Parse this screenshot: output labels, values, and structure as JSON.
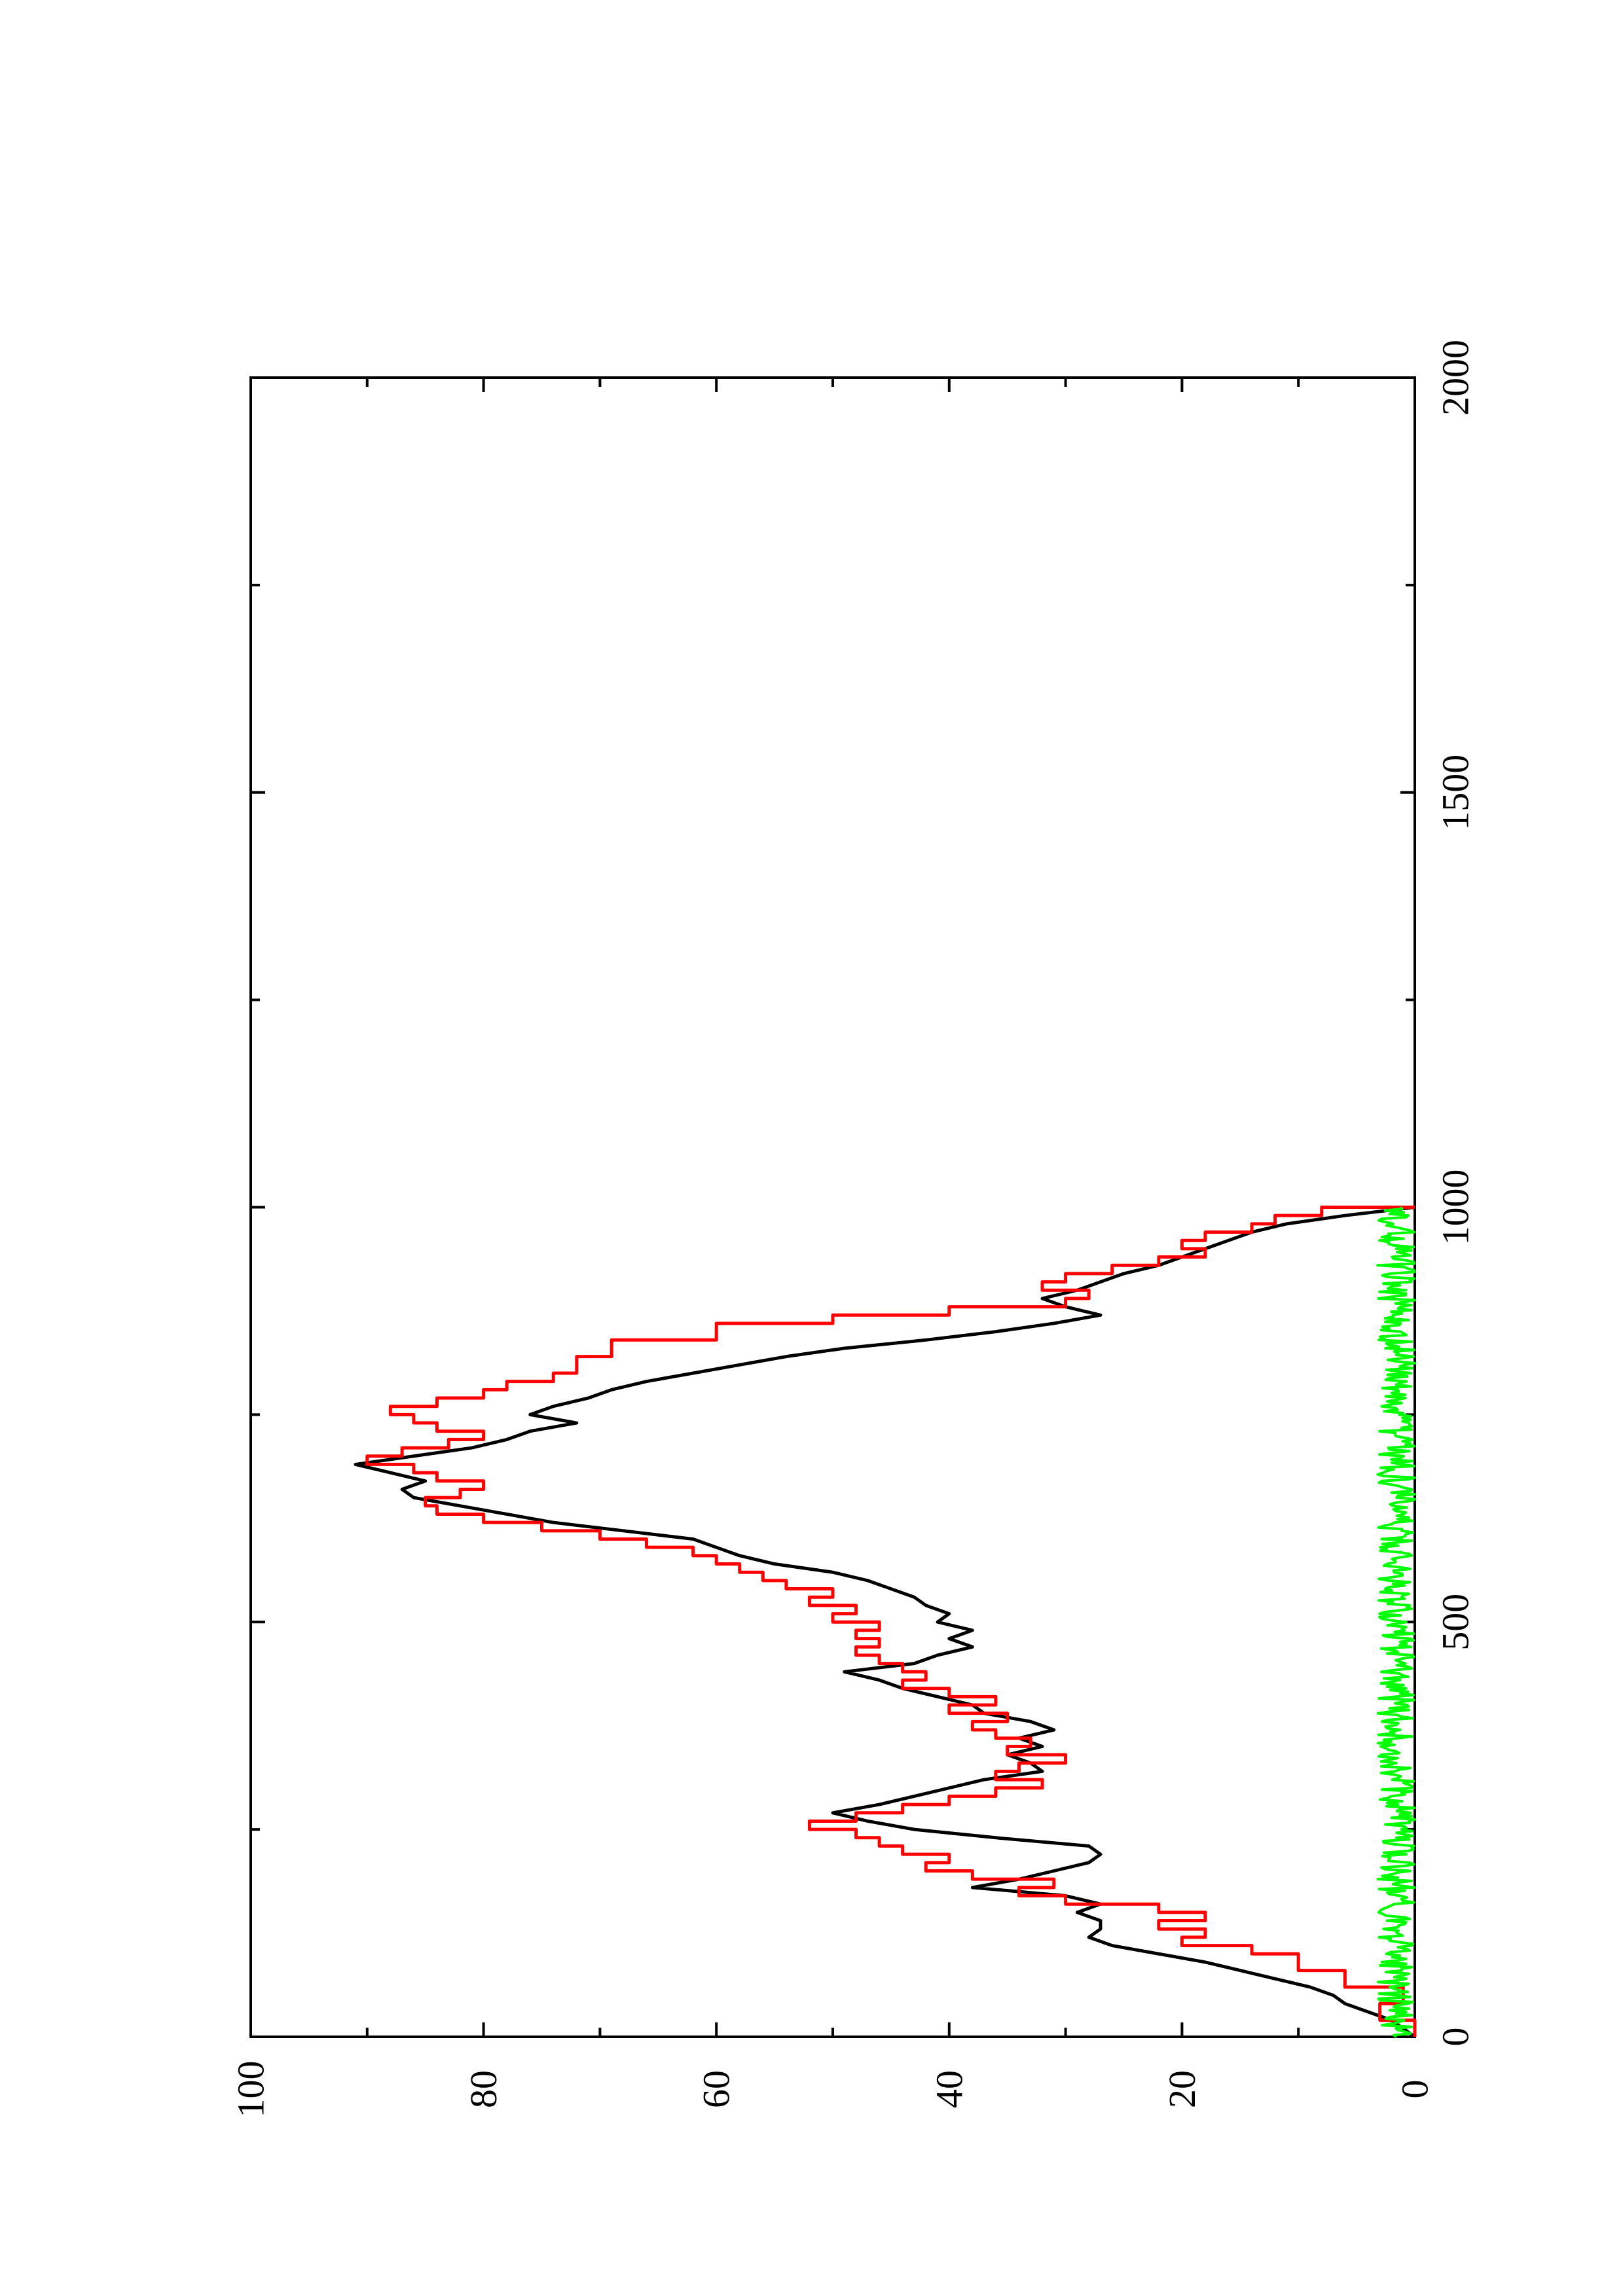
{
  "chart_data": {
    "type": "line",
    "title": "",
    "xlabel": "",
    "ylabel": "",
    "xlim": [
      0,
      2000
    ],
    "ylim": [
      0,
      100
    ],
    "x_ticks": [
      0,
      500,
      1000,
      1500,
      2000
    ],
    "y_ticks": [
      0,
      20,
      40,
      60,
      80,
      100
    ],
    "x_tick_labels": [
      "0",
      "500",
      "1000",
      "1500",
      "2000"
    ],
    "y_tick_labels": [
      "0",
      "20",
      "40",
      "60",
      "80",
      "100"
    ],
    "x_minor_step": 250,
    "y_minor_step": 10,
    "grid": false,
    "legend": false,
    "series": [
      {
        "color": "#000000",
        "style": "line",
        "x": [
          0,
          10,
          20,
          30,
          40,
          50,
          60,
          70,
          80,
          90,
          100,
          110,
          120,
          130,
          140,
          150,
          160,
          170,
          180,
          190,
          200,
          210,
          220,
          230,
          240,
          250,
          260,
          270,
          280,
          290,
          300,
          310,
          320,
          330,
          340,
          350,
          360,
          370,
          380,
          390,
          400,
          410,
          420,
          430,
          440,
          450,
          460,
          470,
          480,
          490,
          500,
          510,
          520,
          530,
          540,
          550,
          560,
          570,
          580,
          590,
          600,
          610,
          620,
          630,
          640,
          650,
          660,
          670,
          680,
          690,
          700,
          710,
          720,
          730,
          740,
          750,
          760,
          770,
          780,
          790,
          800,
          810,
          820,
          830,
          840,
          850,
          860,
          870,
          880,
          890,
          900,
          910,
          920,
          930,
          940,
          950,
          960,
          970,
          980,
          990,
          1000
        ],
        "y": [
          0,
          1,
          2,
          4,
          6,
          7,
          9,
          12,
          15,
          18,
          22,
          26,
          28,
          27,
          27,
          29,
          27,
          30,
          38,
          34,
          31,
          28,
          27,
          28,
          36,
          43,
          47,
          50,
          46,
          43,
          40,
          37,
          32,
          33,
          35,
          32,
          34,
          31,
          33,
          37,
          38,
          41,
          44,
          46,
          49,
          43,
          41,
          38,
          40,
          38,
          41,
          40,
          42,
          43,
          45,
          47,
          50,
          55,
          58,
          60,
          62,
          68,
          74,
          78,
          82,
          86,
          87,
          85,
          88,
          91,
          86,
          81,
          78,
          76,
          72,
          76,
          74,
          71,
          69,
          66,
          62,
          58,
          54,
          49,
          42,
          36,
          31,
          27,
          30,
          32,
          29,
          27,
          25,
          22,
          20,
          18,
          16,
          14,
          11,
          6,
          0
        ]
      },
      {
        "color": "#ff0000",
        "style": "steps",
        "x": [
          0,
          20,
          40,
          60,
          80,
          100,
          110,
          120,
          130,
          140,
          150,
          160,
          170,
          180,
          190,
          200,
          210,
          220,
          230,
          240,
          250,
          260,
          270,
          280,
          290,
          300,
          310,
          320,
          330,
          340,
          350,
          360,
          370,
          380,
          390,
          400,
          410,
          420,
          430,
          440,
          450,
          460,
          470,
          480,
          490,
          500,
          510,
          520,
          530,
          540,
          550,
          560,
          570,
          580,
          590,
          600,
          610,
          620,
          630,
          640,
          650,
          660,
          670,
          680,
          690,
          700,
          710,
          720,
          730,
          740,
          750,
          760,
          770,
          780,
          790,
          800,
          820,
          840,
          860,
          870,
          880,
          890,
          900,
          910,
          920,
          930,
          940,
          950,
          960,
          970,
          980,
          990,
          1000
        ],
        "y": [
          0,
          3,
          1,
          6,
          10,
          14,
          20,
          18,
          22,
          18,
          22,
          30,
          34,
          31,
          38,
          42,
          40,
          44,
          46,
          48,
          52,
          48,
          44,
          40,
          36,
          32,
          36,
          34,
          30,
          35,
          33,
          36,
          38,
          35,
          40,
          36,
          40,
          44,
          42,
          44,
          46,
          48,
          46,
          48,
          46,
          50,
          48,
          52,
          50,
          54,
          56,
          58,
          60,
          62,
          66,
          70,
          75,
          80,
          84,
          85,
          82,
          80,
          84,
          86,
          90,
          87,
          83,
          80,
          84,
          86,
          88,
          84,
          80,
          78,
          74,
          72,
          69,
          60,
          50,
          40,
          30,
          28,
          32,
          30,
          26,
          22,
          18,
          20,
          18,
          14,
          12,
          8,
          0
        ]
      },
      {
        "color": "#00ff00",
        "style": "noise",
        "x": [
          0,
          1000
        ],
        "y": [
          0,
          0
        ]
      }
    ]
  }
}
